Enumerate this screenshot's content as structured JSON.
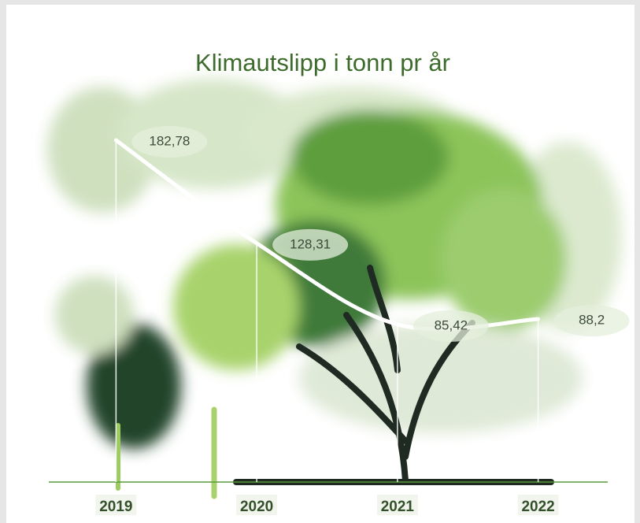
{
  "chart_data": {
    "type": "line",
    "title": "Klimautslipp i tonn pr år",
    "categories": [
      "2019",
      "2020",
      "2021",
      "2022"
    ],
    "values": [
      182.78,
      128.31,
      85.42,
      88.2
    ],
    "value_labels": [
      "182,78",
      "128,31",
      "85,42",
      "88,2"
    ],
    "color": "#ffffff"
  }
}
